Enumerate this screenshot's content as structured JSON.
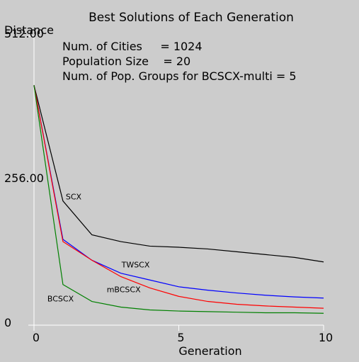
{
  "chart_data": {
    "type": "line",
    "title": "Best Solutions of Each Generation",
    "xlabel": "Generation",
    "ylabel": "Distance",
    "xlim": [
      0,
      10
    ],
    "ylim": [
      0,
      512
    ],
    "x_ticks": [
      {
        "value": 0,
        "label": "0"
      },
      {
        "value": 5,
        "label": "5"
      },
      {
        "value": 10,
        "label": "10"
      }
    ],
    "y_ticks": [
      {
        "value": 0,
        "label": "0"
      },
      {
        "value": 256,
        "label": "256.00"
      },
      {
        "value": 512,
        "label": "512.00"
      }
    ],
    "info_lines": [
      "Num. of Cities     = 1024",
      "Population Size    = 20",
      "Num. of Pop. Groups for BCSCX-multi = 5"
    ],
    "grid": false,
    "legend": "inline labels",
    "x": [
      0,
      1,
      2,
      3,
      4,
      5,
      6,
      7,
      8,
      9,
      10
    ],
    "series": [
      {
        "name": "SCX",
        "color": "#000000",
        "values": [
          425,
          220,
          160,
          148,
          140,
          138,
          135,
          130,
          125,
          120,
          112
        ]
      },
      {
        "name": "TWSCX",
        "color": "#0000ff",
        "values": [
          425,
          152,
          115,
          92,
          80,
          68,
          62,
          57,
          53,
          50,
          48
        ]
      },
      {
        "name": "mBCSCX",
        "color": "#ff0000",
        "values": [
          425,
          148,
          115,
          86,
          66,
          51,
          42,
          37,
          34,
          32,
          30
        ]
      },
      {
        "name": "BCSCX",
        "color": "#008000",
        "values": [
          425,
          72,
          42,
          32,
          27,
          25,
          24,
          23,
          22,
          22,
          21
        ]
      }
    ]
  }
}
